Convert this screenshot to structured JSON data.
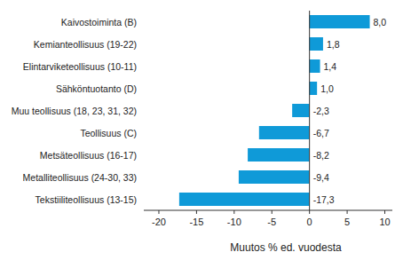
{
  "chart_data": {
    "type": "bar",
    "orientation": "horizontal",
    "x_label": "Muutos % ed. vuodesta",
    "categories": [
      "Kaivostoiminta (B)",
      "Kemianteollisuus (19-22)",
      "Elintarviketeollisuus (10-11)",
      "Sähköntuotanto (D)",
      "Muu teollisuus (18, 23, 31, 32)",
      "Teollisuus (C)",
      "Metsäteollisuus (16-17)",
      "Metalliteollisuus (24-30, 33)",
      "Tekstiiliteollisuus (13-15)"
    ],
    "values": [
      8.0,
      1.8,
      1.4,
      1.0,
      -2.3,
      -6.7,
      -8.2,
      -9.4,
      -17.3
    ],
    "value_labels": [
      "8,0",
      "1,8",
      "1,4",
      "1,0",
      "-2,3",
      "-6,7",
      "-8,2",
      "-9,4",
      "-17,3"
    ],
    "color": "#0f9ad8",
    "xlim": [
      -22,
      11
    ],
    "xticks": [
      -20,
      -15,
      -10,
      -5,
      0,
      5,
      10
    ],
    "grid": false,
    "data_labels": true
  }
}
